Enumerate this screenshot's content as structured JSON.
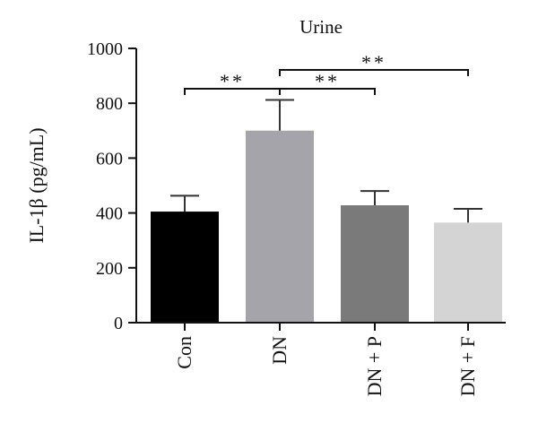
{
  "chart_data": {
    "type": "bar",
    "title": "Urine",
    "ylabel": "IL-1β (pg/mL)",
    "xlabel": "",
    "ylim": [
      0,
      1000
    ],
    "yticks": [
      0,
      200,
      400,
      600,
      800,
      1000
    ],
    "categories": [
      "Con",
      "DN",
      "DN + P",
      "DN + F"
    ],
    "values": [
      405,
      700,
      428,
      365
    ],
    "errors": [
      58,
      112,
      52,
      50
    ],
    "colors": [
      "#000000",
      "#a4a4aa",
      "#7a7a7a",
      "#d4d4d4"
    ],
    "significance": [
      {
        "from": 0,
        "to": 1,
        "label": "**"
      },
      {
        "from": 1,
        "to": 2,
        "label": "**"
      },
      {
        "from": 1,
        "to": 3,
        "label": "**"
      }
    ]
  }
}
